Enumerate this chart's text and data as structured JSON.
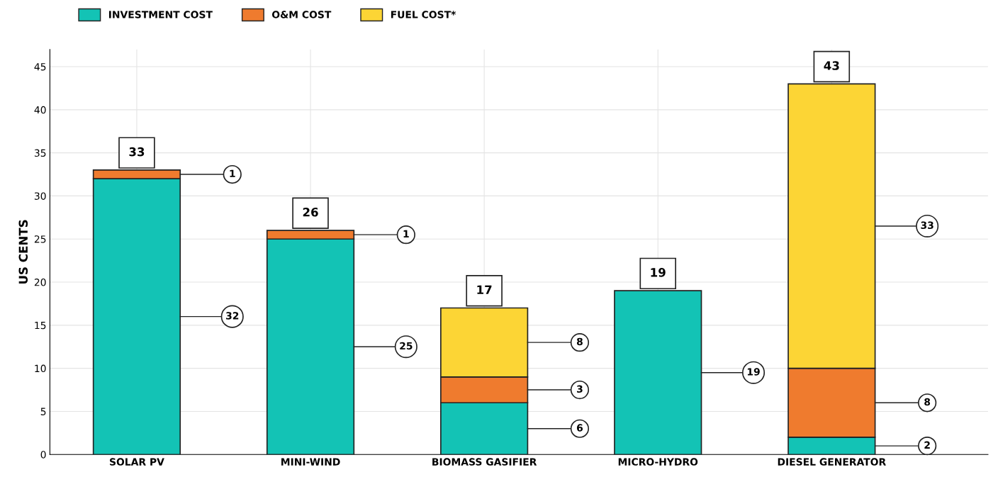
{
  "chart_data": {
    "type": "bar",
    "stacked": true,
    "ylabel": "US CENTS",
    "categories": [
      "SOLAR PV",
      "MINI-WIND",
      "BIOMASS GASIFIER",
      "MICRO-HYDRO",
      "DIESEL GENERATOR"
    ],
    "series": [
      {
        "name": "INVESTMENT COST",
        "color": "#13c3b5",
        "values": [
          32,
          25,
          6,
          19,
          2
        ],
        "value_labels": [
          "32",
          "25",
          "6",
          "19",
          "2"
        ]
      },
      {
        "name": "O&M COST",
        "color": "#ef7b2e",
        "values": [
          1,
          1,
          3,
          null,
          8
        ],
        "value_labels": [
          "1",
          "1",
          "3",
          null,
          "8"
        ]
      },
      {
        "name": "FUEL COST*",
        "color": "#fcd535",
        "values": [
          null,
          null,
          8,
          null,
          33
        ],
        "value_labels": [
          null,
          null,
          "8",
          null,
          "33"
        ]
      }
    ],
    "totals": [
      "33",
      "26",
      "17",
      "19",
      "43"
    ],
    "ylim": [
      0,
      47
    ],
    "yticks": [
      0,
      5,
      10,
      15,
      20,
      25,
      30,
      35,
      40,
      45
    ],
    "grid": true,
    "legend": "top left"
  }
}
